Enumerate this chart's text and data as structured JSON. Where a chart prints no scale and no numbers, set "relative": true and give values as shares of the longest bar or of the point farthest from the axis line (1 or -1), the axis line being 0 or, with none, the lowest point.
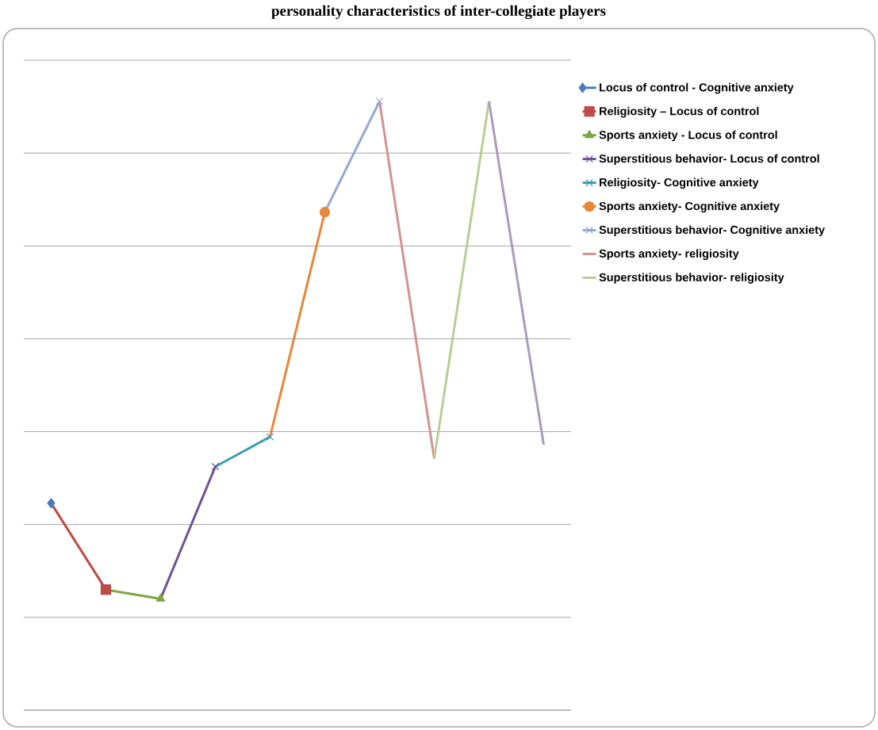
{
  "chart_data": {
    "type": "line",
    "title": "personality characteristics of inter-collegiate players",
    "relative": true,
    "grid": "y",
    "legend": "right",
    "categories": [
      null,
      null,
      null,
      null,
      null,
      null,
      null,
      null,
      null,
      null
    ],
    "series": [
      {
        "name": "Locus of control - Cognitive anxiety",
        "color": "#4a7ebb",
        "marker": "diamond",
        "values": [
          0.34,
          null,
          null,
          null,
          null,
          null,
          null,
          null,
          null,
          null
        ]
      },
      {
        "name": "Religiosity – Locus of control",
        "color": "#be4b48",
        "marker": "square",
        "values": [
          0.34,
          0.198,
          null,
          null,
          null,
          null,
          null,
          null,
          null,
          null
        ]
      },
      {
        "name": "Sports anxiety - Locus of control",
        "color": "#7ea543",
        "marker": "triangle",
        "values": [
          null,
          0.198,
          0.183,
          null,
          null,
          null,
          null,
          null,
          null,
          null
        ]
      },
      {
        "name": "Superstitious behavior- Locus of control",
        "color": "#6e5394",
        "marker": "cross",
        "values": [
          null,
          null,
          0.183,
          0.4,
          null,
          null,
          null,
          null,
          null,
          null
        ]
      },
      {
        "name": "Religiosity- Cognitive anxiety",
        "color": "#3e9cb4",
        "marker": "cross",
        "values": [
          null,
          null,
          null,
          0.4,
          0.449,
          null,
          null,
          null,
          null,
          null
        ]
      },
      {
        "name": "Sports anxiety- Cognitive anxiety",
        "color": "#e6873a",
        "marker": "circle",
        "values": [
          null,
          null,
          null,
          null,
          0.449,
          0.818,
          null,
          null,
          null,
          null
        ]
      },
      {
        "name": "Superstitious behavior- Cognitive anxiety",
        "color": "#93a9d0",
        "marker": "cross",
        "values": [
          null,
          null,
          null,
          null,
          null,
          0.818,
          1,
          null,
          null,
          null
        ]
      },
      {
        "name": "Sports anxiety- religiosity",
        "color": "#d19392",
        "marker": "none",
        "values": [
          null,
          null,
          null,
          null,
          null,
          null,
          1,
          0.413,
          null,
          null
        ]
      },
      {
        "name": "Superstitious behavior- religiosity",
        "color": "#b9cd96",
        "marker": "none",
        "values": [
          null,
          null,
          null,
          null,
          null,
          null,
          null,
          0.413,
          1,
          null
        ]
      },
      {
        "color": "#a99bbd",
        "marker": "none",
        "values": [
          null,
          null,
          null,
          null,
          null,
          null,
          null,
          null,
          1,
          0.436
        ]
      }
    ]
  }
}
